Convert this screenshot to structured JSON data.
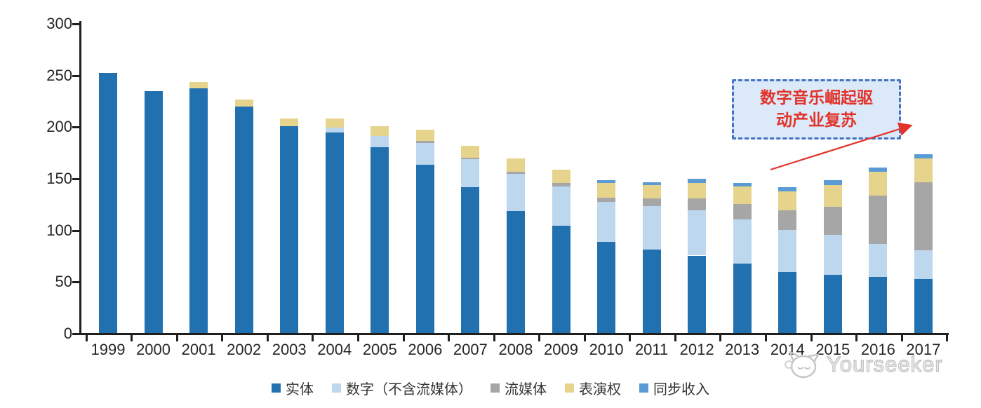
{
  "chart_data": {
    "type": "bar",
    "stacked": true,
    "title": "",
    "xlabel": "",
    "ylabel": "",
    "ylim": [
      0,
      300
    ],
    "yticks": [
      0,
      50,
      100,
      150,
      200,
      250,
      300
    ],
    "grid": false,
    "legend_position": "bottom",
    "categories": [
      "1999",
      "2000",
      "2001",
      "2002",
      "2003",
      "2004",
      "2005",
      "2006",
      "2007",
      "2008",
      "2009",
      "2010",
      "2011",
      "2012",
      "2013",
      "2014",
      "2015",
      "2016",
      "2017"
    ],
    "series": [
      {
        "key": "physical",
        "name": "实体",
        "color": "#2171B0",
        "values": [
          252,
          234,
          237,
          219,
          200,
          194,
          180,
          163,
          141,
          118,
          104,
          88,
          81,
          75,
          67,
          59,
          56,
          54,
          52
        ]
      },
      {
        "key": "digital-excl-streaming",
        "name": "数字（不含流媒体）",
        "color": "#BDD7EE",
        "values": [
          0,
          0,
          0,
          0,
          0,
          5,
          11,
          21,
          27,
          36,
          38,
          39,
          42,
          44,
          43,
          41,
          39,
          32,
          28
        ]
      },
      {
        "key": "streaming",
        "name": "流媒体",
        "color": "#A6A6A6",
        "values": [
          0,
          0,
          0,
          0,
          0,
          0,
          0,
          2,
          2,
          2,
          3,
          4,
          7,
          11,
          15,
          19,
          27,
          47,
          66
        ]
      },
      {
        "key": "performance-rights",
        "name": "表演权",
        "color": "#E7D48C",
        "values": [
          0,
          0,
          6,
          7,
          8,
          9,
          9,
          11,
          11,
          13,
          13,
          14,
          13,
          15,
          17,
          18,
          21,
          23,
          23
        ]
      },
      {
        "key": "sync-revenue",
        "name": "同步收入",
        "color": "#5B9BD5",
        "values": [
          0,
          0,
          0,
          0,
          0,
          0,
          0,
          0,
          0,
          0,
          0,
          3,
          3,
          4,
          3,
          4,
          5,
          4,
          4
        ]
      }
    ]
  },
  "annotation": {
    "line1": "数字音乐崛起驱",
    "line2": "动产业复苏",
    "border_color": "#4472C4",
    "fill_color": "#DBE9F8",
    "text_color": "#E2332B",
    "arrow_color": "#E2332B"
  },
  "watermark": {
    "text": "Yourseeker"
  }
}
